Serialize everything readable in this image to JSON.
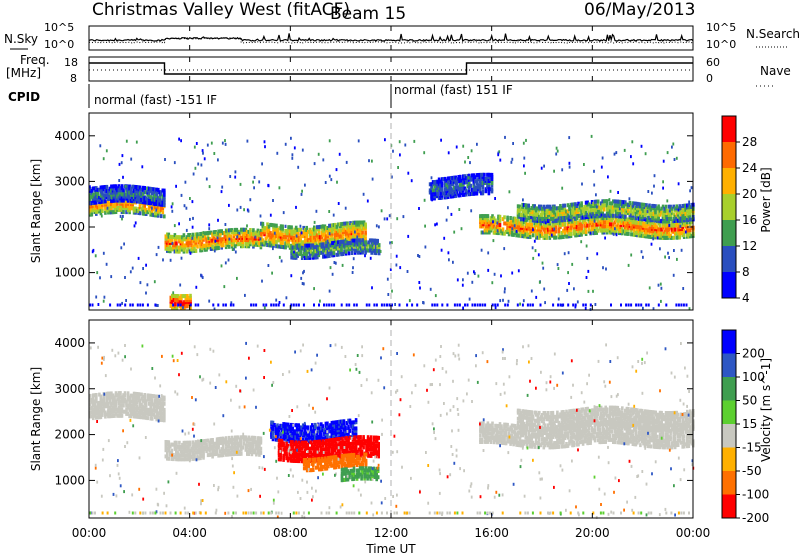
{
  "header": {
    "station": "Christmas Valley West (fitACF)",
    "beam": "Beam 15",
    "date": "06/May/2013"
  },
  "sky_panel": {
    "left_label": "N.Sky",
    "right_label": "N.Search",
    "tick_top": "10^5",
    "tick_bottom": "10^0"
  },
  "freq_panel": {
    "left_label_1": "Freq.",
    "left_label_2": "[MHz]",
    "right_label": "Nave",
    "left_ticks": [
      "18",
      "8"
    ],
    "right_ticks": [
      "60",
      "0"
    ]
  },
  "cpid": {
    "label": "CPID",
    "segments": [
      {
        "text": "normal (fast) -151 IF"
      },
      {
        "text": "normal (fast) 151 IF"
      }
    ]
  },
  "chart_data": [
    {
      "type": "heatmap",
      "name": "power",
      "ylabel": "Slant Range [km]",
      "xlabel": "Time UT",
      "xlim": [
        0,
        24
      ],
      "ylim": [
        180,
        4500
      ],
      "yticks": [
        "1000",
        "2000",
        "3000",
        "4000"
      ],
      "xticks": [
        "00:00",
        "04:00",
        "08:00",
        "12:00",
        "16:00",
        "20:00",
        "00:00"
      ],
      "colorbar": {
        "title": "Power [dB]",
        "ticks": [
          "4",
          "8",
          "12",
          "16",
          "20",
          "24",
          "28"
        ],
        "colors": [
          "#0000ff",
          "#2a4fbf",
          "#3f9e50",
          "#a8cf2c",
          "#ffb000",
          "#ff6a00",
          "#ff0000"
        ]
      },
      "echo_bands": [
        {
          "t0": 0.0,
          "t1": 3.0,
          "r": 2450,
          "w": 180,
          "v": 20
        },
        {
          "t0": 0.0,
          "t1": 3.0,
          "r": 2680,
          "w": 160,
          "v": 9
        },
        {
          "t0": 3.0,
          "t1": 6.8,
          "r": 1700,
          "w": 180,
          "v": 22
        },
        {
          "t0": 6.8,
          "t1": 11.0,
          "r": 1820,
          "w": 230,
          "v": 21
        },
        {
          "t0": 8.0,
          "t1": 11.5,
          "r": 1520,
          "w": 140,
          "v": 12
        },
        {
          "t0": 15.5,
          "t1": 24.0,
          "r": 2000,
          "w": 180,
          "v": 22
        },
        {
          "t0": 17.0,
          "t1": 24.0,
          "r": 2350,
          "w": 160,
          "v": 15
        },
        {
          "t0": 3.2,
          "t1": 4.0,
          "r": 400,
          "w": 170,
          "v": 26
        },
        {
          "t0": 13.5,
          "t1": 16.0,
          "r": 2900,
          "w": 220,
          "v": 8
        }
      ]
    },
    {
      "type": "heatmap",
      "name": "velocity",
      "ylabel": "Slant Range [km]",
      "xlabel": "Time UT",
      "xlim": [
        0,
        24
      ],
      "ylim": [
        180,
        4500
      ],
      "yticks": [
        "1000",
        "2000",
        "3000",
        "4000"
      ],
      "xticks": [
        "00:00",
        "04:00",
        "08:00",
        "12:00",
        "16:00",
        "20:00",
        "00:00"
      ],
      "colorbar": {
        "title": "Velocity [m s^-1]",
        "ticks": [
          "200",
          "100",
          "50",
          "15",
          "-15",
          "-50",
          "-100",
          "-200"
        ],
        "colors": [
          "#0000ff",
          "#2e57c4",
          "#3f9e50",
          "#5ccf30",
          "#c8c8c0",
          "#ffb000",
          "#ff7000",
          "#ff0000"
        ]
      },
      "echo_bands": [
        {
          "t0": 0.0,
          "t1": 3.0,
          "r": 2600,
          "w": 250,
          "v": "gs"
        },
        {
          "t0": 3.0,
          "t1": 6.8,
          "r": 1700,
          "w": 180,
          "v": "gs"
        },
        {
          "t0": 7.2,
          "t1": 10.6,
          "r": 2100,
          "w": 200,
          "v": 160
        },
        {
          "t0": 7.5,
          "t1": 11.5,
          "r": 1700,
          "w": 220,
          "v": -150
        },
        {
          "t0": 8.5,
          "t1": 11.0,
          "r": 1400,
          "w": 120,
          "v": -80
        },
        {
          "t0": 15.5,
          "t1": 24.0,
          "r": 2000,
          "w": 220,
          "v": "gs"
        },
        {
          "t0": 17.0,
          "t1": 24.0,
          "r": 2350,
          "w": 180,
          "v": "gs"
        },
        {
          "t0": 10.0,
          "t1": 11.5,
          "r": 1100,
          "w": 120,
          "v": 40
        }
      ]
    }
  ]
}
